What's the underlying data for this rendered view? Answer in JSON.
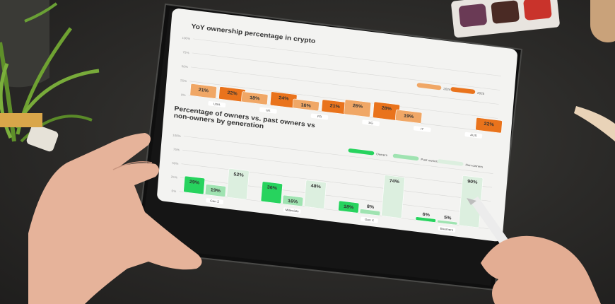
{
  "chart_data": [
    {
      "type": "bar",
      "title": "YoY ownership percentage in crypto",
      "y_ticks": [
        "100%",
        "75%",
        "50%",
        "25%",
        "0%"
      ],
      "categories": [
        "USA",
        "UK",
        "FR",
        "SG",
        "IT",
        "AUS"
      ],
      "series": [
        {
          "name": "2024",
          "color": "#f0a766",
          "values": [
            21,
            18,
            16,
            26,
            19,
            null
          ]
        },
        {
          "name": "2025",
          "color": "#e9731c",
          "values": [
            22,
            24,
            21,
            28,
            null,
            22
          ]
        }
      ],
      "value_labels": {
        "2024": [
          "21%",
          "18%",
          "16%",
          "26%",
          "19%",
          ""
        ],
        "2025": [
          "22%",
          "24%",
          "21%",
          "28%",
          "",
          "22%"
        ]
      },
      "ylim": [
        0,
        100
      ],
      "legend": "top-right"
    },
    {
      "type": "bar",
      "title": "Percentage of owners vs. past owners vs non-owners by generation",
      "title_lines": [
        "Percentage of owners vs. past owners vs",
        "non-owners by generation"
      ],
      "y_ticks": [
        "100%",
        "75%",
        "50%",
        "25%",
        "0%"
      ],
      "categories": [
        "Gen Z",
        "Millenials",
        "Gen X",
        "Boomers"
      ],
      "series": [
        {
          "name": "Owners",
          "color": "#27d35e",
          "values": [
            29,
            36,
            18,
            6
          ]
        },
        {
          "name": "Past owners",
          "color": "#9fe3b1",
          "values": [
            19,
            16,
            8,
            5
          ]
        },
        {
          "name": "Non-owners",
          "color": "#dcefdf",
          "values": [
            52,
            48,
            74,
            90
          ]
        }
      ],
      "value_labels": {
        "Owners": [
          "29%",
          "36%",
          "18%",
          "6%"
        ],
        "Past owners": [
          "19%",
          "16%",
          "8%",
          "5%"
        ],
        "Non-owners": [
          "52%",
          "48%",
          "74%",
          "90%"
        ]
      },
      "ylim": [
        0,
        100
      ],
      "legend": "top-right"
    }
  ],
  "scene": {
    "tablet_color": "#111111",
    "table_color": "#2e2e2c",
    "skin_color": "#e6b39a",
    "pencil_color": "#ececec"
  }
}
